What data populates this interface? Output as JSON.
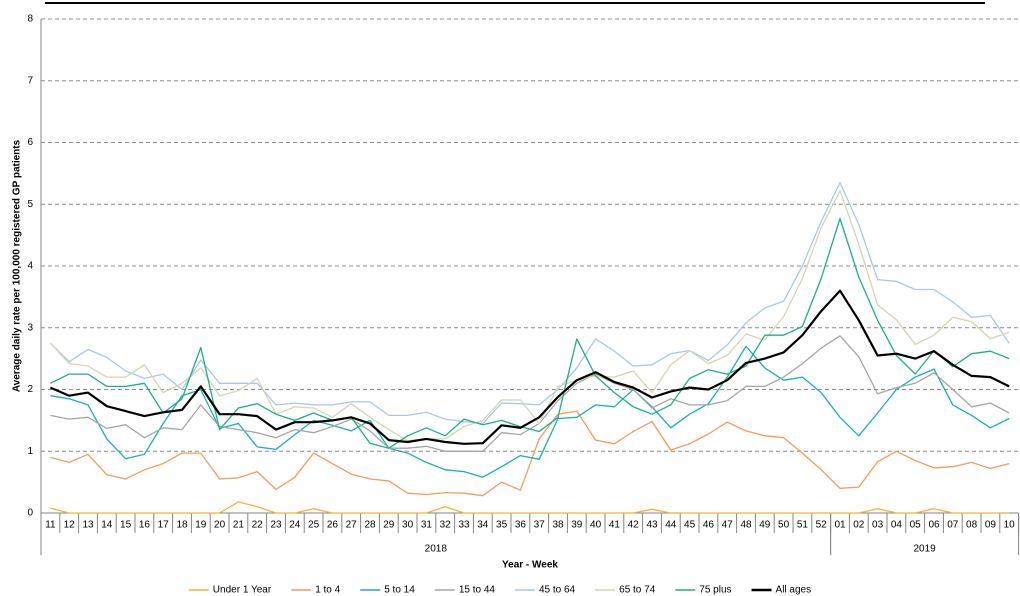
{
  "chart_data": {
    "type": "line",
    "y_label": "Average daily rate per 100,000 registered GP patients",
    "x_label": "Year - Week",
    "categories": [
      "11",
      "12",
      "13",
      "14",
      "15",
      "16",
      "17",
      "18",
      "19",
      "20",
      "21",
      "22",
      "23",
      "24",
      "25",
      "26",
      "27",
      "28",
      "29",
      "30",
      "31",
      "32",
      "33",
      "34",
      "35",
      "36",
      "37",
      "38",
      "39",
      "40",
      "41",
      "42",
      "43",
      "44",
      "45",
      "46",
      "47",
      "48",
      "49",
      "50",
      "51",
      "52",
      "01",
      "02",
      "03",
      "04",
      "05",
      "06",
      "07",
      "08",
      "09",
      "10"
    ],
    "x_groups": [
      {
        "label": "2018",
        "count": 42
      },
      {
        "label": "2019",
        "count": 10
      }
    ],
    "ylim": [
      0,
      8
    ],
    "yticks": [
      0,
      1,
      2,
      3,
      4,
      5,
      6,
      7,
      8
    ],
    "grid": true,
    "series": [
      {
        "name": "Under 1 Year",
        "color": "#f5b335",
        "values": [
          0.08,
          0,
          0,
          0,
          0,
          0,
          0,
          0,
          0,
          0,
          0.18,
          0.1,
          0,
          0,
          0.07,
          0,
          0,
          0,
          0,
          0,
          0,
          0.1,
          0,
          0,
          0,
          0,
          0,
          0,
          0,
          0,
          0,
          0,
          0.06,
          0,
          0,
          0,
          0,
          0,
          0,
          0,
          0,
          0,
          0,
          0,
          0.07,
          0,
          0,
          0.07,
          0,
          0,
          0,
          0
        ]
      },
      {
        "name": "1 to 4",
        "color": "#f39c5c",
        "values": [
          0.9,
          0.82,
          0.95,
          0.62,
          0.55,
          0.7,
          0.8,
          0.97,
          0.97,
          0.55,
          0.57,
          0.67,
          0.38,
          0.58,
          0.97,
          0.8,
          0.63,
          0.55,
          0.52,
          0.32,
          0.3,
          0.33,
          0.32,
          0.28,
          0.5,
          0.37,
          1.2,
          1.6,
          1.65,
          1.18,
          1.12,
          1.32,
          1.48,
          1.02,
          1.12,
          1.28,
          1.47,
          1.33,
          1.25,
          1.22,
          0.97,
          0.7,
          0.4,
          0.42,
          0.83,
          1.0,
          0.85,
          0.73,
          0.75,
          0.82,
          0.72,
          0.8
        ]
      },
      {
        "name": "5 to 14",
        "color": "#19b3a8",
        "values": [
          1.9,
          1.85,
          1.75,
          1.2,
          0.88,
          0.95,
          1.45,
          1.9,
          2.0,
          1.37,
          1.45,
          1.07,
          1.03,
          1.27,
          1.5,
          1.42,
          1.33,
          1.5,
          1.05,
          0.97,
          0.82,
          0.7,
          0.67,
          0.58,
          0.75,
          0.93,
          0.87,
          1.53,
          1.55,
          1.75,
          1.72,
          2.0,
          1.72,
          1.38,
          1.6,
          1.77,
          2.2,
          2.7,
          2.35,
          2.15,
          2.2,
          1.95,
          1.55,
          1.25,
          1.62,
          2.0,
          2.2,
          2.33,
          1.75,
          1.58,
          1.38,
          1.53
        ]
      },
      {
        "name": "15 to 44",
        "color": "#a6a6a6",
        "values": [
          1.58,
          1.52,
          1.55,
          1.37,
          1.43,
          1.22,
          1.38,
          1.35,
          1.75,
          1.4,
          1.35,
          1.3,
          1.22,
          1.35,
          1.3,
          1.4,
          1.52,
          1.33,
          1.05,
          1.05,
          1.08,
          1.0,
          1.0,
          1.0,
          1.3,
          1.27,
          1.45,
          1.82,
          2.1,
          2.25,
          2.1,
          2.0,
          1.7,
          1.85,
          1.75,
          1.75,
          1.82,
          2.05,
          2.05,
          2.2,
          2.42,
          2.67,
          2.87,
          2.53,
          1.93,
          2.03,
          2.1,
          2.27,
          2.0,
          1.72,
          1.78,
          1.62
        ]
      },
      {
        "name": "45 to 64",
        "color": "#a9c9e2",
        "values": [
          2.75,
          2.45,
          2.65,
          2.52,
          2.3,
          2.18,
          2.25,
          2.0,
          2.48,
          2.1,
          2.1,
          2.1,
          1.75,
          1.78,
          1.75,
          1.75,
          1.8,
          1.8,
          1.58,
          1.58,
          1.63,
          1.52,
          1.48,
          1.45,
          1.78,
          1.77,
          1.75,
          2.0,
          2.35,
          2.82,
          2.62,
          2.38,
          2.4,
          2.58,
          2.63,
          2.47,
          2.72,
          3.08,
          3.32,
          3.43,
          4.0,
          4.72,
          5.35,
          4.67,
          3.78,
          3.75,
          3.62,
          3.62,
          3.42,
          3.17,
          3.2,
          2.75
        ]
      },
      {
        "name": "65 to 74",
        "color": "#d9d2b4",
        "values": [
          2.75,
          2.42,
          2.38,
          2.2,
          2.2,
          2.4,
          1.95,
          2.1,
          2.35,
          1.9,
          1.98,
          2.18,
          1.6,
          1.72,
          1.7,
          1.55,
          1.77,
          1.55,
          1.35,
          1.17,
          1.2,
          1.2,
          1.4,
          1.5,
          1.83,
          1.83,
          1.45,
          2.05,
          2.15,
          2.22,
          2.2,
          2.3,
          1.95,
          2.4,
          2.63,
          2.42,
          2.55,
          2.9,
          2.8,
          3.18,
          3.8,
          4.62,
          5.22,
          4.35,
          3.37,
          3.13,
          2.73,
          2.88,
          3.17,
          3.1,
          2.82,
          2.93
        ]
      },
      {
        "name": "75 plus",
        "color": "#1bb08a",
        "values": [
          2.1,
          2.25,
          2.25,
          2.05,
          2.05,
          2.1,
          1.62,
          1.85,
          2.68,
          1.35,
          1.7,
          1.77,
          1.6,
          1.5,
          1.62,
          1.5,
          1.55,
          1.13,
          1.05,
          1.25,
          1.38,
          1.25,
          1.52,
          1.43,
          1.5,
          1.4,
          1.32,
          1.55,
          2.82,
          2.22,
          1.95,
          1.72,
          1.6,
          1.75,
          2.18,
          2.32,
          2.25,
          2.38,
          2.88,
          2.88,
          3.02,
          3.8,
          4.77,
          3.82,
          3.12,
          2.55,
          2.25,
          2.63,
          2.37,
          2.58,
          2.62,
          2.5
        ]
      },
      {
        "name": "All ages",
        "color": "#000000",
        "values": [
          2.03,
          1.9,
          1.95,
          1.73,
          1.65,
          1.57,
          1.63,
          1.67,
          2.05,
          1.6,
          1.6,
          1.57,
          1.35,
          1.47,
          1.47,
          1.5,
          1.55,
          1.45,
          1.18,
          1.15,
          1.2,
          1.15,
          1.12,
          1.13,
          1.42,
          1.38,
          1.55,
          1.88,
          2.15,
          2.28,
          2.12,
          2.03,
          1.87,
          1.97,
          2.03,
          2.0,
          2.15,
          2.43,
          2.5,
          2.6,
          2.88,
          3.27,
          3.6,
          3.12,
          2.55,
          2.58,
          2.5,
          2.62,
          2.4,
          2.22,
          2.2,
          2.05
        ]
      }
    ]
  }
}
